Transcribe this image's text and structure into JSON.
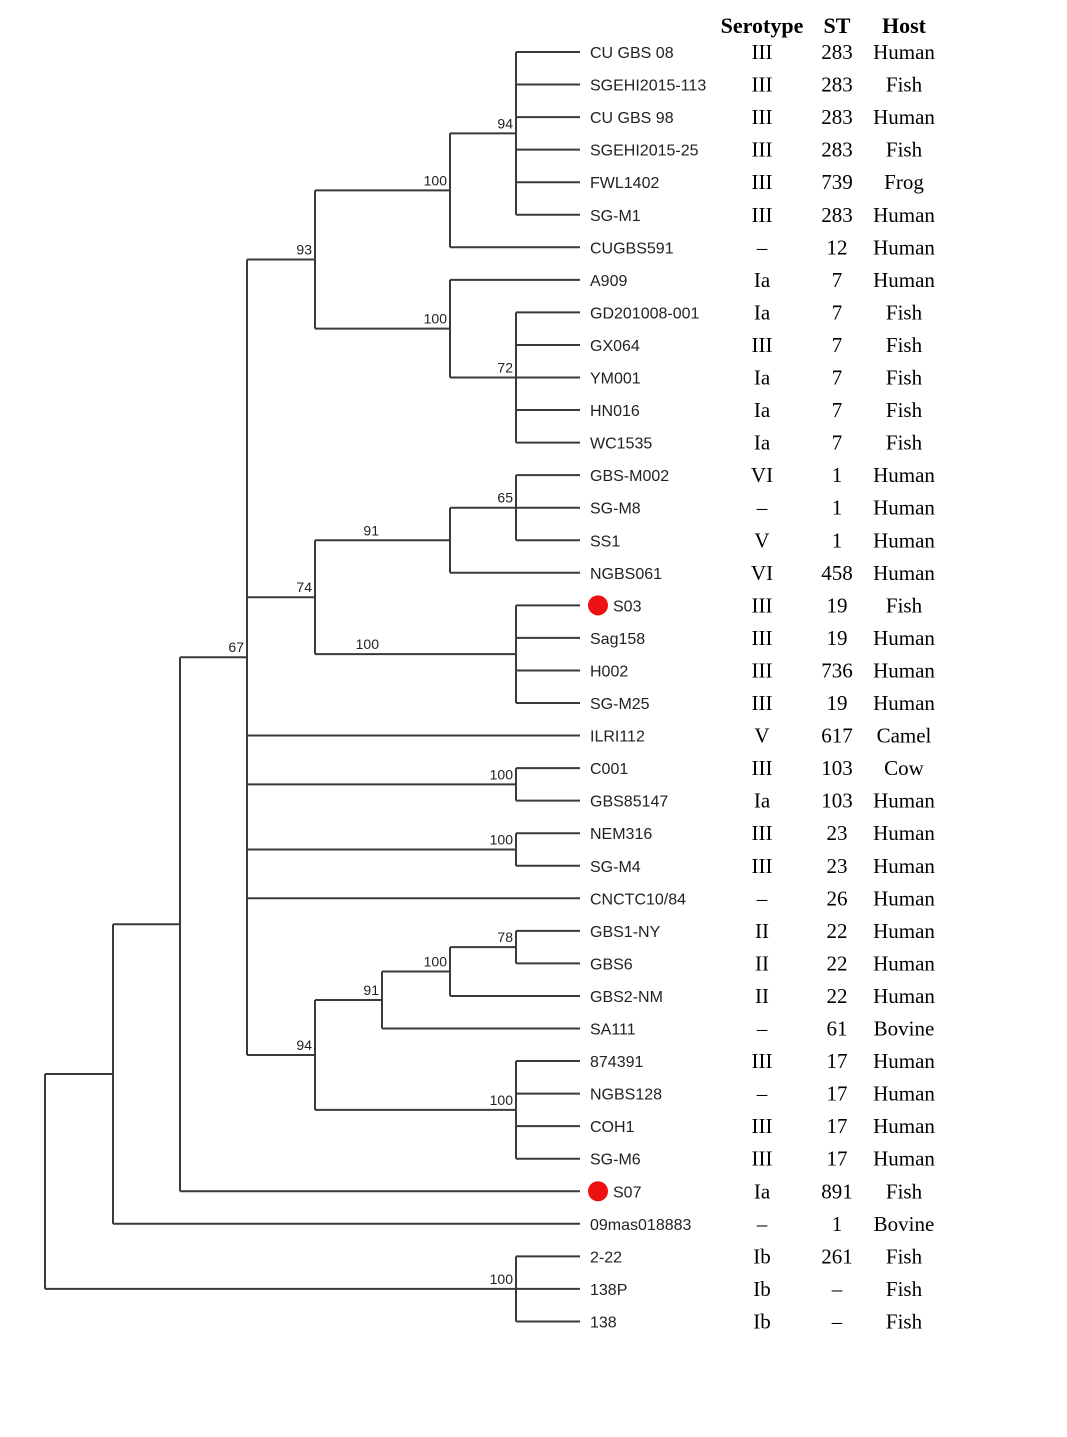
{
  "columns": {
    "serotype": "Serotype",
    "st": "ST",
    "host": "Host"
  },
  "marker_color": "#ee1111",
  "taxa": [
    {
      "name": "CU GBS 08",
      "serotype": "III",
      "st": "283",
      "host": "Human"
    },
    {
      "name": "SGEHI2015-113",
      "serotype": "III",
      "st": "283",
      "host": "Fish"
    },
    {
      "name": "CU GBS 98",
      "serotype": "III",
      "st": "283",
      "host": "Human"
    },
    {
      "name": "SGEHI2015-25",
      "serotype": "III",
      "st": "283",
      "host": "Fish"
    },
    {
      "name": "FWL1402",
      "serotype": "III",
      "st": "739",
      "host": "Frog"
    },
    {
      "name": "SG-M1",
      "serotype": "III",
      "st": "283",
      "host": "Human"
    },
    {
      "name": "CUGBS591",
      "serotype": "–",
      "st": "12",
      "host": "Human"
    },
    {
      "name": "A909",
      "serotype": "Ia",
      "st": "7",
      "host": "Human"
    },
    {
      "name": "GD201008-001",
      "serotype": "Ia",
      "st": "7",
      "host": "Fish"
    },
    {
      "name": "GX064",
      "serotype": "III",
      "st": "7",
      "host": "Fish"
    },
    {
      "name": "YM001",
      "serotype": "Ia",
      "st": "7",
      "host": "Fish"
    },
    {
      "name": "HN016",
      "serotype": "Ia",
      "st": "7",
      "host": "Fish"
    },
    {
      "name": "WC1535",
      "serotype": "Ia",
      "st": "7",
      "host": "Fish"
    },
    {
      "name": "GBS-M002",
      "serotype": "VI",
      "st": "1",
      "host": "Human"
    },
    {
      "name": "SG-M8",
      "serotype": "–",
      "st": "1",
      "host": "Human"
    },
    {
      "name": "SS1",
      "serotype": "V",
      "st": "1",
      "host": "Human"
    },
    {
      "name": "NGBS061",
      "serotype": "VI",
      "st": "458",
      "host": "Human"
    },
    {
      "name": "S03",
      "serotype": "III",
      "st": "19",
      "host": "Fish",
      "highlight": true
    },
    {
      "name": "Sag158",
      "serotype": "III",
      "st": "19",
      "host": "Human"
    },
    {
      "name": "H002",
      "serotype": "III",
      "st": "736",
      "host": "Human"
    },
    {
      "name": "SG-M25",
      "serotype": "III",
      "st": "19",
      "host": "Human"
    },
    {
      "name": "ILRI112",
      "serotype": "V",
      "st": "617",
      "host": "Camel"
    },
    {
      "name": "C001",
      "serotype": "III",
      "st": "103",
      "host": "Cow"
    },
    {
      "name": "GBS85147",
      "serotype": "Ia",
      "st": "103",
      "host": "Human"
    },
    {
      "name": "NEM316",
      "serotype": "III",
      "st": "23",
      "host": "Human"
    },
    {
      "name": "SG-M4",
      "serotype": "III",
      "st": "23",
      "host": "Human"
    },
    {
      "name": "CNCTC10/84",
      "serotype": "–",
      "st": "26",
      "host": "Human"
    },
    {
      "name": "GBS1-NY",
      "serotype": "II",
      "st": "22",
      "host": "Human"
    },
    {
      "name": "GBS6",
      "serotype": "II",
      "st": "22",
      "host": "Human"
    },
    {
      "name": "GBS2-NM",
      "serotype": "II",
      "st": "22",
      "host": "Human"
    },
    {
      "name": "SA111",
      "serotype": "–",
      "st": "61",
      "host": "Bovine"
    },
    {
      "name": "874391",
      "serotype": "III",
      "st": "17",
      "host": "Human"
    },
    {
      "name": "NGBS128",
      "serotype": "–",
      "st": "17",
      "host": "Human"
    },
    {
      "name": "COH1",
      "serotype": "III",
      "st": "17",
      "host": "Human"
    },
    {
      "name": "SG-M6",
      "serotype": "III",
      "st": "17",
      "host": "Human"
    },
    {
      "name": "S07",
      "serotype": "Ia",
      "st": "891",
      "host": "Fish",
      "highlight": true
    },
    {
      "name": "09mas018883",
      "serotype": "–",
      "st": "1",
      "host": "Bovine"
    },
    {
      "name": "2-22",
      "serotype": "Ib",
      "st": "261",
      "host": "Fish"
    },
    {
      "name": "138P",
      "serotype": "Ib",
      "st": "–",
      "host": "Fish"
    },
    {
      "name": "138",
      "serotype": "Ib",
      "st": "–",
      "host": "Fish"
    }
  ],
  "support_values": [
    "94",
    "100",
    "100",
    "72",
    "93",
    "65",
    "91",
    "74",
    "100",
    "67",
    "100",
    "100",
    "78",
    "100",
    "91",
    "100",
    "94",
    "100",
    "100"
  ]
}
